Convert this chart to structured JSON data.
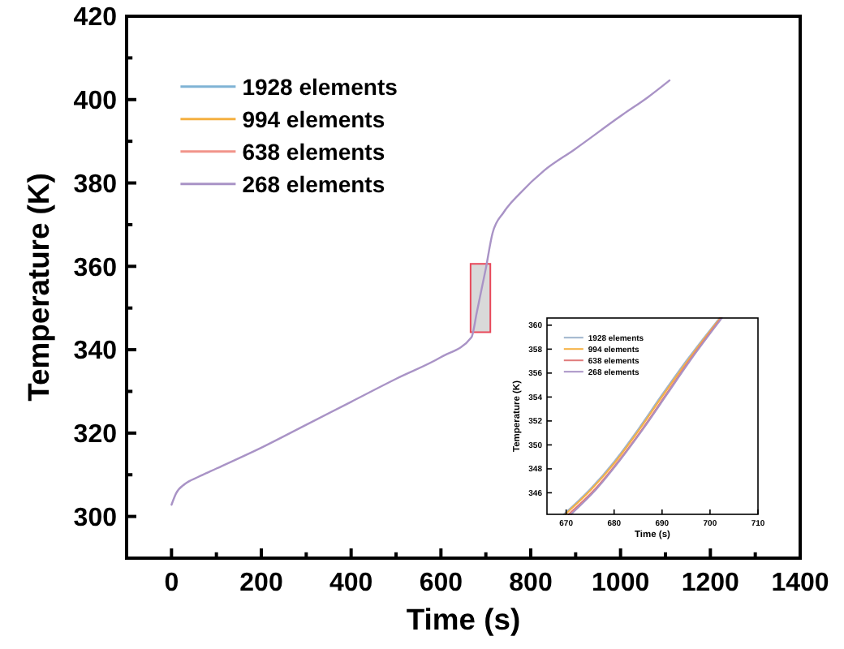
{
  "chart_data": [
    {
      "type": "line",
      "xlabel": "Time (s)",
      "ylabel": "Temperature (K)",
      "xlim": [
        -100,
        1400
      ],
      "ylim": [
        290,
        420
      ],
      "xticks": [
        0,
        {
          "value": 100,
          "label": null
        },
        200,
        {
          "value": 300,
          "label": null
        },
        400,
        {
          "value": 500,
          "label": null
        },
        600,
        {
          "value": 700,
          "label": null
        },
        800,
        {
          "value": 900,
          "label": null
        },
        1000,
        {
          "value": 1100,
          "label": null
        },
        1200,
        {
          "value": 1300,
          "label": null
        },
        1400
      ],
      "yticks": [
        {
          "value": 290,
          "label": null
        },
        300,
        {
          "value": 310,
          "label": null
        },
        320,
        {
          "value": 330,
          "label": null
        },
        340,
        {
          "value": 350,
          "label": null
        },
        360,
        {
          "value": 370,
          "label": null
        },
        380,
        {
          "value": 390,
          "label": null
        },
        400,
        {
          "value": 410,
          "label": null
        },
        420
      ],
      "x": [
        0,
        10,
        30,
        60,
        100,
        200,
        300,
        400,
        500,
        600,
        668,
        680,
        700,
        715,
        740,
        776,
        830,
        897,
        1006,
        1060,
        1109
      ],
      "series": [
        {
          "name": "1928 elements",
          "color": "#7fb3d5",
          "values": [
            null,
            null,
            null,
            null,
            null,
            null,
            null,
            null,
            null,
            null,
            null,
            null,
            null,
            null,
            null,
            null,
            null,
            null,
            null,
            null,
            null
          ]
        },
        {
          "name": "994 elements",
          "color": "#f5b041",
          "values": [
            null,
            null,
            null,
            null,
            null,
            null,
            null,
            null,
            null,
            null,
            null,
            null,
            null,
            null,
            null,
            null,
            null,
            null,
            null,
            null,
            null
          ]
        },
        {
          "name": "638 elements",
          "color": "#f1948a",
          "values": [
            null,
            null,
            null,
            null,
            null,
            null,
            null,
            null,
            null,
            null,
            null,
            null,
            null,
            null,
            null,
            null,
            null,
            null,
            null,
            null,
            null
          ]
        },
        {
          "name": "268 elements",
          "color": "#a993c6",
          "values": [
            302.8,
            305.5,
            307.8,
            309.5,
            311.5,
            316.5,
            322,
            327.5,
            333,
            338.2,
            343,
            349,
            359.5,
            368,
            373,
            377.5,
            383,
            388,
            396.5,
            400.5,
            404.6
          ]
        }
      ],
      "legend": "top left"
    },
    {
      "type": "line",
      "xlabel": "Time (s)",
      "ylabel": "Temperature (K)",
      "xlim": [
        666,
        710
      ],
      "ylim": [
        344.2,
        360.6
      ],
      "xticks": [
        670,
        680,
        690,
        700,
        710
      ],
      "yticks": [
        346,
        348,
        350,
        352,
        354,
        356,
        358,
        360
      ],
      "series": [
        {
          "name": "1928 elements",
          "color": "#9fb4cc",
          "x": [
            669.5,
            675,
            680,
            685,
            690,
            695,
            700,
            702
          ],
          "values": [
            344.2,
            346.3,
            348.6,
            351.3,
            354.2,
            357,
            359.6,
            360.6
          ]
        },
        {
          "name": "994 elements",
          "color": "#f5b041",
          "x": [
            669.8,
            675.3,
            680.3,
            685.3,
            690.3,
            695.3,
            700.2,
            702.2
          ],
          "values": [
            344.2,
            346.3,
            348.6,
            351.3,
            354.2,
            357,
            359.6,
            360.6
          ]
        },
        {
          "name": "638 elements",
          "color": "#e07b7b",
          "x": [
            670.5,
            676,
            681,
            686,
            690.8,
            695.6,
            700.4,
            702.3
          ],
          "values": [
            344.2,
            346.3,
            348.7,
            351.4,
            354.2,
            357,
            359.6,
            360.6
          ]
        },
        {
          "name": "268 elements",
          "color": "#a993c6",
          "x": [
            671,
            676.3,
            681.2,
            686.2,
            691,
            695.8,
            700.6,
            702.5
          ],
          "values": [
            344.2,
            346.3,
            348.7,
            351.4,
            354.2,
            357,
            359.6,
            360.6
          ]
        }
      ],
      "legend": "top left"
    }
  ]
}
